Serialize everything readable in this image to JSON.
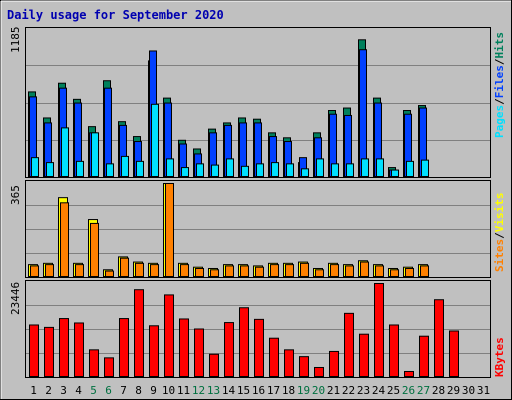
{
  "title": "Daily usage for September 2020",
  "colors": {
    "background": "#c0c0c0",
    "title_text": "#0000b0",
    "hits": "#00805c",
    "files": "#0040ff",
    "pages": "#00e0ff",
    "visits": "#ffff00",
    "sites": "#ff8000",
    "kbytes": "#ff0000",
    "weekend_day_label": "#007040",
    "weekday_day_label": "#000000"
  },
  "chart_data": [
    {
      "type": "bar",
      "panel": "hits-files-pages",
      "x": [
        "1",
        "2",
        "3",
        "4",
        "5",
        "6",
        "7",
        "8",
        "9",
        "10",
        "11",
        "12",
        "13",
        "14",
        "15",
        "16",
        "17",
        "18",
        "19",
        "20",
        "21",
        "22",
        "23",
        "24",
        "25",
        "26",
        "27",
        "28",
        "29",
        "30",
        "31"
      ],
      "y_max_label": "1185",
      "ylim": [
        0,
        1185
      ],
      "legend": {
        "parts": [
          "Pages",
          "Files",
          "Hits"
        ],
        "separator": "/"
      },
      "series": [
        {
          "name": "Hits",
          "values": [
            690,
            480,
            760,
            630,
            410,
            780,
            450,
            330,
            940,
            640,
            300,
            230,
            390,
            440,
            480,
            470,
            360,
            320,
            120,
            360,
            540,
            560,
            1110,
            640,
            80,
            540,
            580,
            0,
            0,
            0,
            0
          ]
        },
        {
          "name": "Files",
          "values": [
            650,
            440,
            720,
            600,
            360,
            720,
            420,
            290,
            1020,
            600,
            270,
            190,
            360,
            420,
            440,
            440,
            330,
            290,
            160,
            320,
            510,
            500,
            1030,
            600,
            60,
            510,
            560,
            0,
            0,
            0,
            0
          ]
        },
        {
          "name": "Pages",
          "values": [
            160,
            120,
            400,
            130,
            360,
            110,
            170,
            130,
            590,
            150,
            80,
            110,
            100,
            150,
            90,
            110,
            120,
            110,
            70,
            150,
            110,
            110,
            150,
            150,
            60,
            130,
            140,
            0,
            0,
            0,
            0
          ]
        }
      ]
    },
    {
      "type": "bar",
      "panel": "sites-visits",
      "x": [
        "1",
        "2",
        "3",
        "4",
        "5",
        "6",
        "7",
        "8",
        "9",
        "10",
        "11",
        "12",
        "13",
        "14",
        "15",
        "16",
        "17",
        "18",
        "19",
        "20",
        "21",
        "22",
        "23",
        "24",
        "25",
        "26",
        "27",
        "28",
        "29",
        "30",
        "31"
      ],
      "y_max_label": "365",
      "ylim": [
        0,
        365
      ],
      "legend": {
        "parts": [
          "Sites",
          "Visits"
        ],
        "separator": "/"
      },
      "series": [
        {
          "name": "Visits",
          "values": [
            50,
            55,
            310,
            55,
            225,
            30,
            80,
            60,
            55,
            365,
            55,
            40,
            35,
            50,
            50,
            45,
            55,
            55,
            60,
            35,
            55,
            50,
            65,
            50,
            35,
            40,
            50,
            0,
            0,
            0,
            0
          ]
        },
        {
          "name": "Sites",
          "values": [
            45,
            50,
            290,
            50,
            210,
            25,
            75,
            55,
            50,
            365,
            50,
            35,
            30,
            45,
            45,
            40,
            50,
            50,
            55,
            30,
            50,
            45,
            60,
            45,
            30,
            35,
            45,
            0,
            0,
            0,
            0
          ]
        }
      ]
    },
    {
      "type": "bar",
      "panel": "kbytes",
      "x": [
        "1",
        "2",
        "3",
        "4",
        "5",
        "6",
        "7",
        "8",
        "9",
        "10",
        "11",
        "12",
        "13",
        "14",
        "15",
        "16",
        "17",
        "18",
        "19",
        "20",
        "21",
        "22",
        "23",
        "24",
        "25",
        "26",
        "27",
        "28",
        "29",
        "30",
        "31"
      ],
      "y_max_label": "23446",
      "ylim": [
        0,
        23446
      ],
      "legend": {
        "parts": [
          "KBytes"
        ],
        "separator": ""
      },
      "series": [
        {
          "name": "KBytes",
          "values": [
            13100,
            12500,
            14700,
            13600,
            6900,
            4900,
            14700,
            21900,
            12900,
            20600,
            14600,
            12100,
            5800,
            13700,
            17400,
            14500,
            9800,
            6900,
            5200,
            2500,
            6500,
            16000,
            10800,
            23446,
            13100,
            1500,
            10300,
            19400,
            11600,
            0,
            0
          ]
        }
      ]
    }
  ],
  "x_axis": {
    "day_labels": [
      "1",
      "2",
      "3",
      "4",
      "5",
      "6",
      "7",
      "8",
      "9",
      "10",
      "11",
      "12",
      "13",
      "14",
      "15",
      "16",
      "17",
      "18",
      "19",
      "20",
      "21",
      "22",
      "23",
      "24",
      "25",
      "26",
      "27",
      "28",
      "29",
      "30",
      "31"
    ],
    "weekend_days": [
      "5",
      "6",
      "12",
      "13",
      "19",
      "20",
      "26",
      "27"
    ]
  }
}
